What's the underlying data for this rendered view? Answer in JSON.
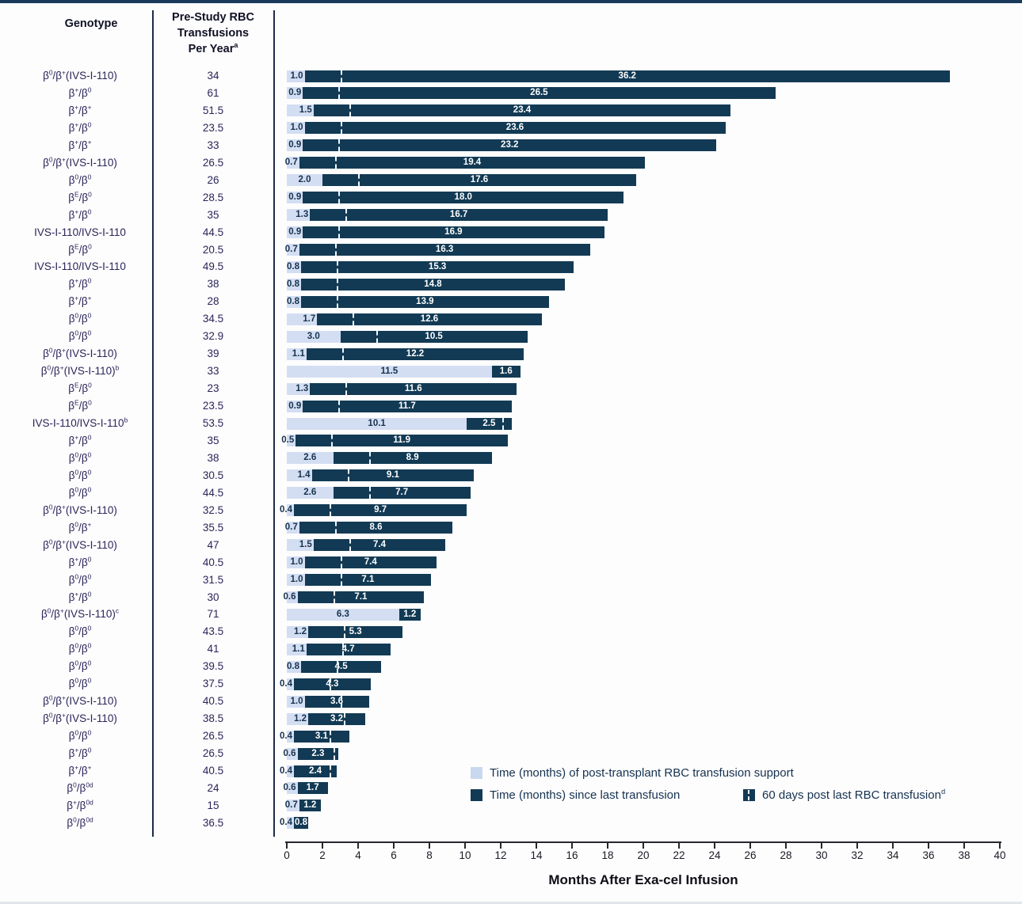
{
  "figure": {
    "columns": {
      "genotype_header": "Genotype",
      "prestudy_header_lines": [
        "Pre-Study RBC",
        "Transfusions",
        "Per Year^a^"
      ]
    },
    "legend": {
      "support_label": "Time (months) of post-transplant RBC transfusion support",
      "since_label": "Time (months) since last transfusion",
      "marker_label": "60 days post last RBC transfusion^d^"
    },
    "colors": {
      "support_bar": "#D3DEF2",
      "since_bar": "#123A54",
      "marker_line": "#FFFFFF",
      "genotype_text": "#2A2558",
      "legend_text": "#16324F",
      "top_border": "#1A3A5C"
    }
  },
  "chart_data": {
    "type": "bar",
    "variant": "horizontal_stacked_swimmer",
    "title": "",
    "xlabel": "Months After Exa-cel Infusion",
    "ylabel": "",
    "xlim": [
      0,
      40
    ],
    "x_ticks": [
      0,
      2,
      4,
      6,
      8,
      10,
      12,
      14,
      16,
      18,
      20,
      22,
      24,
      26,
      28,
      30,
      32,
      34,
      36,
      38,
      40
    ],
    "grid": false,
    "legend_position": "bottom-right",
    "series": [
      {
        "name": "Time (months) of post-transplant RBC transfusion support",
        "key": "support_months",
        "color": "#D3DEF2"
      },
      {
        "name": "Time (months) since last transfusion",
        "key": "since_last_months",
        "color": "#123A54"
      }
    ],
    "marker": {
      "name": "60 days post last RBC transfusion",
      "months_after_support_end": 2,
      "shown_when": "since_last_months >= 2"
    },
    "rows": [
      {
        "genotype": "β^0^/β^+^(IVS-I-110)",
        "transfusions_per_year": 34,
        "support_months": 1.0,
        "since_last_months": 36.2
      },
      {
        "genotype": "β^+^/β^0^",
        "transfusions_per_year": 61,
        "support_months": 0.9,
        "since_last_months": 26.5
      },
      {
        "genotype": "β^+^/β^+^",
        "transfusions_per_year": 51.5,
        "support_months": 1.5,
        "since_last_months": 23.4
      },
      {
        "genotype": "β^+^/β^0^",
        "transfusions_per_year": 23.5,
        "support_months": 1.0,
        "since_last_months": 23.6
      },
      {
        "genotype": "β^+^/β^+^",
        "transfusions_per_year": 33,
        "support_months": 0.9,
        "since_last_months": 23.2
      },
      {
        "genotype": "β^0^/β^+^(IVS-I-110)",
        "transfusions_per_year": 26.5,
        "support_months": 0.7,
        "since_last_months": 19.4
      },
      {
        "genotype": "β^0^/β^0^",
        "transfusions_per_year": 26,
        "support_months": 2.0,
        "since_last_months": 17.6
      },
      {
        "genotype": "β^E^/β^0^",
        "transfusions_per_year": 28.5,
        "support_months": 0.9,
        "since_last_months": 18.0
      },
      {
        "genotype": "β^+^/β^0^",
        "transfusions_per_year": 35,
        "support_months": 1.3,
        "since_last_months": 16.7
      },
      {
        "genotype": "IVS-I-110/IVS-I-110",
        "transfusions_per_year": 44.5,
        "support_months": 0.9,
        "since_last_months": 16.9
      },
      {
        "genotype": "β^E^/β^0^",
        "transfusions_per_year": 20.5,
        "support_months": 0.7,
        "since_last_months": 16.3
      },
      {
        "genotype": "IVS-I-110/IVS-I-110",
        "transfusions_per_year": 49.5,
        "support_months": 0.8,
        "since_last_months": 15.3
      },
      {
        "genotype": "β^+^/β^0^",
        "transfusions_per_year": 38,
        "support_months": 0.8,
        "since_last_months": 14.8
      },
      {
        "genotype": "β^+^/β^+^",
        "transfusions_per_year": 28,
        "support_months": 0.8,
        "since_last_months": 13.9
      },
      {
        "genotype": "β^0^/β^0^",
        "transfusions_per_year": 34.5,
        "support_months": 1.7,
        "since_last_months": 12.6
      },
      {
        "genotype": "β^0^/β^0^",
        "transfusions_per_year": 32.9,
        "support_months": 3.0,
        "since_last_months": 10.5
      },
      {
        "genotype": "β^0^/β^+^(IVS-I-110)",
        "transfusions_per_year": 39,
        "support_months": 1.1,
        "since_last_months": 12.2
      },
      {
        "genotype": "β^0^/β^+^(IVS-I-110)^b^",
        "transfusions_per_year": 33,
        "support_months": 11.5,
        "since_last_months": 1.6
      },
      {
        "genotype": "β^E^/β^0^",
        "transfusions_per_year": 23,
        "support_months": 1.3,
        "since_last_months": 11.6
      },
      {
        "genotype": "β^E^/β^0^",
        "transfusions_per_year": 23.5,
        "support_months": 0.9,
        "since_last_months": 11.7
      },
      {
        "genotype": "IVS-I-110/IVS-I-110^b^",
        "transfusions_per_year": 53.5,
        "support_months": 10.1,
        "since_last_months": 2.5
      },
      {
        "genotype": "β^+^/β^0^",
        "transfusions_per_year": 35,
        "support_months": 0.5,
        "since_last_months": 11.9
      },
      {
        "genotype": "β^0^/β^0^",
        "transfusions_per_year": 38,
        "support_months": 2.6,
        "since_last_months": 8.9
      },
      {
        "genotype": "β^0^/β^0^",
        "transfusions_per_year": 30.5,
        "support_months": 1.4,
        "since_last_months": 9.1
      },
      {
        "genotype": "β^0^/β^0^",
        "transfusions_per_year": 44.5,
        "support_months": 2.6,
        "since_last_months": 7.7
      },
      {
        "genotype": "β^0^/β^+^(IVS-I-110)",
        "transfusions_per_year": 32.5,
        "support_months": 0.4,
        "since_last_months": 9.7
      },
      {
        "genotype": "β^0^/β^+^",
        "transfusions_per_year": 35.5,
        "support_months": 0.7,
        "since_last_months": 8.6
      },
      {
        "genotype": "β^0^/β^+^(IVS-I-110)",
        "transfusions_per_year": 47,
        "support_months": 1.5,
        "since_last_months": 7.4
      },
      {
        "genotype": "β^+^/β^0^",
        "transfusions_per_year": 40.5,
        "support_months": 1.0,
        "since_last_months": 7.4
      },
      {
        "genotype": "β^0^/β^0^",
        "transfusions_per_year": 31.5,
        "support_months": 1.0,
        "since_last_months": 7.1
      },
      {
        "genotype": "β^+^/β^0^",
        "transfusions_per_year": 30,
        "support_months": 0.6,
        "since_last_months": 7.1
      },
      {
        "genotype": "β^0^/β^+^(IVS-I-110)^c^",
        "transfusions_per_year": 71,
        "support_months": 6.3,
        "since_last_months": 1.2
      },
      {
        "genotype": "β^0^/β^0^",
        "transfusions_per_year": 43.5,
        "support_months": 1.2,
        "since_last_months": 5.3
      },
      {
        "genotype": "β^0^/β^0^",
        "transfusions_per_year": 41,
        "support_months": 1.1,
        "since_last_months": 4.7
      },
      {
        "genotype": "β^0^/β^0^",
        "transfusions_per_year": 39.5,
        "support_months": 0.8,
        "since_last_months": 4.5
      },
      {
        "genotype": "β^0^/β^0^",
        "transfusions_per_year": 37.5,
        "support_months": 0.4,
        "since_last_months": 4.3
      },
      {
        "genotype": "β^0^/β^+^(IVS-I-110)",
        "transfusions_per_year": 40.5,
        "support_months": 1.0,
        "since_last_months": 3.6
      },
      {
        "genotype": "β^0^/β^+^(IVS-I-110)",
        "transfusions_per_year": 38.5,
        "support_months": 1.2,
        "since_last_months": 3.2
      },
      {
        "genotype": "β^0^/β^0^",
        "transfusions_per_year": 26.5,
        "support_months": 0.4,
        "since_last_months": 3.1
      },
      {
        "genotype": "β^+^/β^0^",
        "transfusions_per_year": 26.5,
        "support_months": 0.6,
        "since_last_months": 2.3
      },
      {
        "genotype": "β^+^/β^+^",
        "transfusions_per_year": 40.5,
        "support_months": 0.4,
        "since_last_months": 2.4
      },
      {
        "genotype": "β^0^/β^0d^",
        "transfusions_per_year": 24,
        "support_months": 0.6,
        "since_last_months": 1.7
      },
      {
        "genotype": "β^+^/β^0d^",
        "transfusions_per_year": 15,
        "support_months": 0.7,
        "since_last_months": 1.2
      },
      {
        "genotype": "β^0^/β^0d^",
        "transfusions_per_year": 36.5,
        "support_months": 0.4,
        "since_last_months": 0.8
      }
    ]
  }
}
